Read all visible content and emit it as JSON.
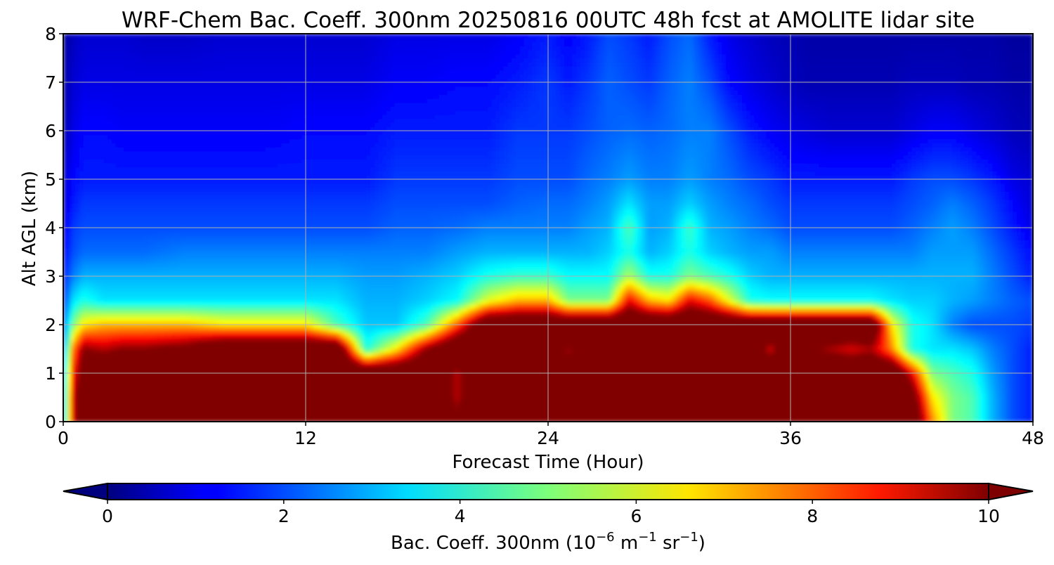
{
  "chart_data": {
    "type": "heatmap",
    "title": "WRF-Chem Bac. Coeff. 300nm  20250816 00UTC 48h fcst at AMOLITE lidar site",
    "xlabel": "Forecast Time (Hour)",
    "ylabel": "Alt AGL (km)",
    "xlim": [
      0,
      48
    ],
    "ylim": [
      0,
      8
    ],
    "xticks": [
      0,
      12,
      24,
      36,
      48
    ],
    "yticks": [
      0,
      1,
      2,
      3,
      4,
      5,
      6,
      7,
      8
    ],
    "grid": true,
    "colormap": "jet",
    "colorbar": {
      "label_main": "Bac. Coeff. 300nm  (10",
      "label_exp1": "−6",
      "label_mid": " m",
      "label_exp2": "−1",
      "label_sr": " sr",
      "label_exp3": "−1",
      "label_end": ")",
      "min": 0,
      "max": 10,
      "ticks": [
        0,
        2,
        4,
        6,
        8,
        10
      ],
      "extend": "both",
      "placement": "bottom"
    },
    "times": [
      0,
      0.5,
      1,
      2,
      3,
      4,
      6,
      8,
      10,
      12,
      13.5,
      15,
      16.5,
      18,
      19.5,
      21,
      22.5,
      24,
      25,
      26,
      27,
      28,
      29,
      30,
      31,
      32,
      33,
      34,
      35,
      36,
      37,
      38,
      39,
      40,
      41,
      42,
      43,
      44,
      45,
      46,
      47,
      48
    ],
    "heights": [
      0,
      0.5,
      1,
      1.5,
      2,
      2.5,
      3,
      3.5,
      4,
      4.5,
      5,
      6,
      7,
      8
    ],
    "z": [
      [
        3.0,
        9.0,
        12.0,
        12.0,
        12.0,
        12.0,
        12.0,
        12.0,
        12.0,
        12.0,
        12.0,
        12.0,
        12.0,
        12.0,
        10.5,
        12.0,
        12.0,
        12.0,
        12.0,
        12.0,
        12.0,
        12.0,
        12.0,
        12.0,
        12.0,
        12.0,
        12.0,
        12.0,
        12.0,
        12.0,
        12.0,
        12.0,
        12.0,
        12.0,
        12.0,
        12.0,
        7.5,
        5.0,
        4.5,
        3.0,
        2.0,
        1.5
      ],
      [
        3.0,
        9.0,
        12.0,
        12.0,
        12.0,
        12.0,
        12.0,
        12.0,
        12.0,
        12.0,
        12.0,
        12.0,
        12.0,
        12.0,
        9.5,
        12.0,
        12.0,
        12.0,
        12.0,
        12.0,
        12.0,
        12.0,
        12.0,
        12.0,
        12.0,
        12.0,
        12.0,
        12.0,
        12.0,
        12.0,
        12.0,
        12.0,
        12.0,
        12.0,
        12.0,
        11.0,
        6.5,
        5.0,
        4.5,
        3.0,
        2.0,
        1.5
      ],
      [
        2.8,
        8.5,
        11.0,
        12.0,
        12.0,
        12.0,
        12.0,
        12.0,
        12.0,
        12.0,
        12.0,
        12.0,
        12.0,
        12.0,
        9.5,
        12.0,
        12.0,
        12.0,
        10.5,
        12.0,
        12.0,
        12.0,
        12.0,
        12.0,
        12.0,
        12.0,
        12.0,
        12.0,
        12.0,
        12.0,
        12.0,
        12.0,
        12.0,
        12.0,
        12.0,
        9.0,
        5.0,
        4.5,
        4.0,
        2.8,
        2.0,
        1.5
      ],
      [
        2.5,
        7.5,
        10.0,
        9.5,
        10.0,
        10.0,
        10.5,
        12.0,
        12.0,
        12.0,
        12.0,
        4.0,
        6.5,
        10.0,
        12.0,
        12.0,
        12.0,
        12.0,
        9.5,
        12.0,
        12.0,
        12.0,
        12.0,
        12.0,
        12.0,
        12.0,
        12.0,
        12.0,
        9.0,
        12.0,
        10.0,
        9.5,
        9.0,
        9.5,
        7.5,
        4.0,
        3.5,
        3.5,
        3.2,
        2.5,
        2.0,
        1.5
      ],
      [
        2.2,
        5.0,
        6.5,
        7.0,
        7.0,
        7.0,
        7.0,
        6.5,
        6.5,
        6.5,
        4.5,
        3.2,
        3.2,
        4.5,
        8.0,
        12.0,
        12.0,
        12.0,
        12.0,
        12.0,
        12.0,
        12.0,
        12.0,
        12.0,
        12.0,
        12.0,
        12.0,
        12.0,
        12.0,
        12.0,
        12.0,
        12.0,
        12.0,
        12.0,
        6.5,
        4.0,
        3.5,
        2.5,
        2.0,
        2.0,
        2.0,
        1.8
      ],
      [
        1.8,
        3.5,
        4.0,
        3.5,
        3.5,
        3.5,
        3.5,
        3.5,
        3.5,
        3.5,
        3.5,
        3.0,
        3.0,
        3.3,
        3.8,
        6.0,
        7.0,
        7.0,
        5.0,
        5.0,
        5.0,
        9.0,
        7.0,
        6.5,
        9.0,
        8.0,
        6.0,
        4.0,
        3.8,
        3.8,
        3.8,
        3.8,
        3.8,
        3.8,
        3.5,
        3.3,
        3.3,
        3.0,
        2.8,
        2.5,
        2.2,
        2.0
      ],
      [
        1.5,
        2.5,
        3.0,
        3.0,
        3.0,
        3.0,
        3.0,
        3.0,
        3.0,
        3.0,
        3.0,
        2.8,
        2.8,
        3.0,
        3.3,
        4.0,
        4.3,
        4.3,
        3.8,
        3.8,
        3.8,
        5.5,
        4.0,
        4.0,
        5.0,
        4.5,
        4.0,
        3.3,
        3.0,
        3.0,
        3.0,
        3.0,
        3.0,
        3.0,
        3.0,
        3.0,
        3.0,
        3.0,
        3.0,
        2.5,
        2.0,
        1.5
      ],
      [
        1.2,
        2.0,
        2.3,
        2.3,
        2.3,
        2.3,
        2.5,
        2.5,
        2.5,
        2.5,
        2.5,
        2.5,
        2.5,
        2.5,
        2.8,
        3.0,
        3.0,
        3.0,
        3.0,
        3.0,
        3.3,
        4.0,
        3.0,
        3.3,
        4.0,
        3.3,
        3.0,
        2.8,
        2.8,
        2.5,
        2.5,
        2.5,
        2.5,
        2.5,
        2.5,
        2.5,
        2.8,
        2.8,
        2.8,
        2.3,
        1.8,
        1.3
      ],
      [
        1.0,
        1.8,
        2.0,
        2.0,
        2.0,
        2.0,
        2.0,
        2.0,
        2.0,
        2.0,
        2.0,
        2.0,
        2.2,
        2.2,
        2.3,
        2.5,
        2.5,
        2.5,
        2.5,
        2.8,
        3.0,
        4.5,
        2.8,
        3.0,
        4.3,
        3.0,
        2.8,
        2.5,
        2.3,
        2.0,
        2.0,
        2.0,
        2.0,
        2.0,
        2.0,
        2.2,
        2.5,
        2.8,
        2.5,
        2.0,
        1.5,
        1.0
      ],
      [
        0.8,
        1.5,
        1.8,
        1.8,
        1.8,
        1.8,
        1.8,
        1.8,
        1.8,
        1.8,
        1.8,
        1.8,
        2.0,
        2.0,
        2.0,
        2.0,
        2.2,
        2.3,
        2.3,
        2.5,
        2.8,
        3.5,
        2.8,
        2.8,
        3.3,
        2.8,
        2.5,
        2.3,
        2.0,
        1.8,
        1.8,
        1.8,
        1.8,
        1.8,
        1.8,
        2.0,
        2.2,
        2.5,
        2.2,
        1.8,
        1.3,
        0.8
      ],
      [
        0.8,
        1.3,
        1.5,
        1.5,
        1.5,
        1.5,
        1.5,
        1.5,
        1.5,
        1.5,
        1.5,
        1.5,
        1.8,
        1.8,
        1.8,
        1.8,
        2.0,
        2.0,
        2.0,
        2.3,
        2.5,
        2.8,
        2.5,
        2.5,
        2.8,
        2.5,
        2.3,
        2.0,
        1.8,
        1.5,
        1.5,
        1.5,
        1.5,
        1.5,
        1.5,
        1.8,
        2.0,
        2.0,
        1.8,
        1.5,
        1.0,
        0.8
      ],
      [
        0.5,
        1.0,
        1.3,
        1.3,
        1.2,
        1.2,
        1.2,
        1.2,
        1.2,
        1.3,
        1.3,
        1.3,
        1.5,
        1.5,
        1.5,
        1.5,
        1.8,
        1.8,
        1.8,
        2.0,
        2.2,
        2.3,
        2.2,
        2.3,
        2.5,
        2.5,
        2.0,
        1.5,
        1.2,
        1.0,
        0.9,
        0.8,
        0.8,
        0.8,
        0.8,
        1.0,
        1.2,
        1.2,
        1.0,
        0.8,
        0.6,
        0.5
      ],
      [
        0.4,
        0.8,
        1.0,
        1.0,
        1.0,
        1.0,
        1.0,
        1.0,
        1.0,
        1.0,
        1.0,
        1.0,
        1.2,
        1.2,
        1.3,
        1.3,
        1.5,
        1.8,
        1.5,
        1.8,
        2.2,
        2.0,
        1.8,
        2.2,
        2.5,
        2.0,
        1.3,
        1.0,
        0.8,
        0.6,
        0.5,
        0.5,
        0.5,
        0.5,
        0.5,
        0.6,
        0.6,
        0.6,
        0.5,
        0.5,
        0.4,
        0.4
      ],
      [
        0.3,
        0.6,
        0.8,
        0.8,
        0.8,
        0.7,
        0.7,
        0.8,
        0.8,
        0.8,
        0.8,
        0.8,
        1.0,
        1.0,
        1.0,
        1.0,
        1.2,
        1.5,
        1.2,
        1.5,
        2.0,
        1.8,
        1.5,
        2.0,
        2.3,
        1.5,
        1.0,
        0.8,
        0.6,
        0.5,
        0.4,
        0.4,
        0.4,
        0.4,
        0.4,
        0.4,
        0.4,
        0.4,
        0.4,
        0.4,
        0.3,
        0.3
      ]
    ]
  }
}
